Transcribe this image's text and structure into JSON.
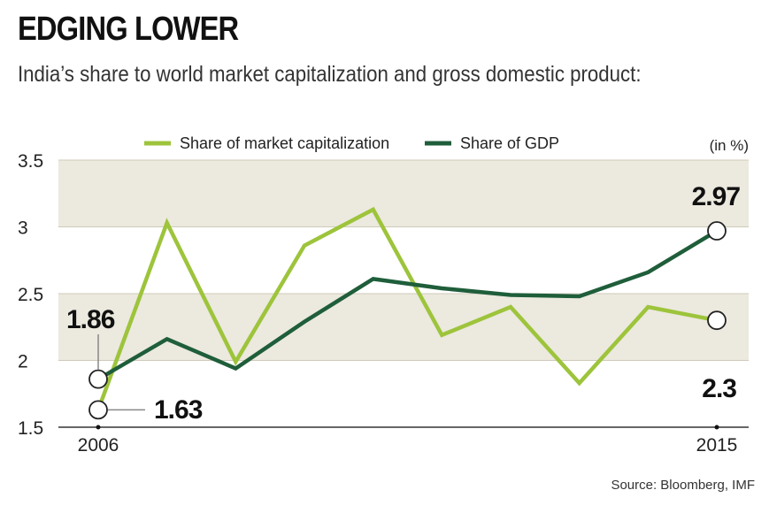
{
  "header": {
    "title": "EDGING LOWER",
    "subtitle": "India’s share to world market capitalization and gross domestic product:"
  },
  "source": "Source: Bloomberg, IMF",
  "chart_data": {
    "type": "line",
    "unit_label": "(in %)",
    "x": [
      2006,
      2007,
      2008,
      2009,
      2010,
      2011,
      2012,
      2013,
      2014,
      2015
    ],
    "x_tick_labels": [
      "2006",
      "2015"
    ],
    "y_ticks": [
      "1.5",
      "2",
      "2.5",
      "3",
      "3.5"
    ],
    "ylim": [
      1.5,
      3.5
    ],
    "grid": "alternating shaded bands",
    "legend_position": "top",
    "series": [
      {
        "name": "Share of market capitalization",
        "color": "#9dc43b",
        "values": [
          1.63,
          3.03,
          1.99,
          2.86,
          3.13,
          2.19,
          2.4,
          1.83,
          2.4,
          2.3
        ]
      },
      {
        "name": "Share of GDP",
        "color": "#1f5e3a",
        "values": [
          1.86,
          2.16,
          1.94,
          2.29,
          2.61,
          2.54,
          2.49,
          2.48,
          2.66,
          2.97
        ]
      }
    ],
    "annotations": [
      {
        "series": 1,
        "index": 0,
        "label": "1.86"
      },
      {
        "series": 0,
        "index": 0,
        "label": "1.63"
      },
      {
        "series": 1,
        "index": 9,
        "label": "2.97"
      },
      {
        "series": 0,
        "index": 9,
        "label": "2.3"
      }
    ]
  }
}
